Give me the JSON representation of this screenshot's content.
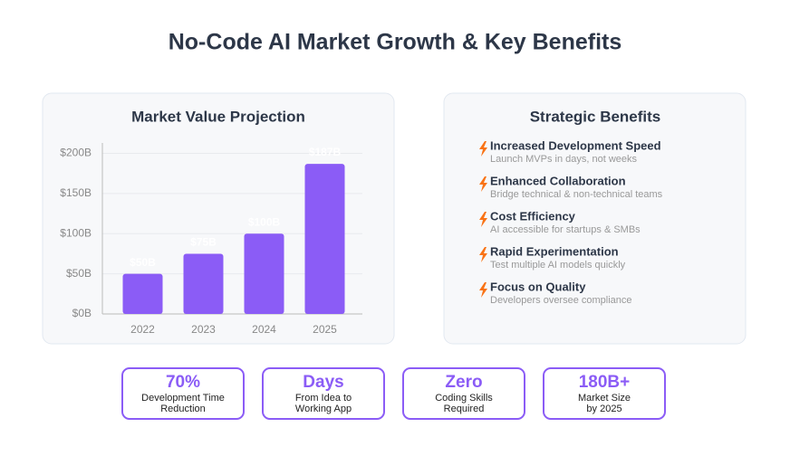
{
  "title": "No-Code AI Market Growth & Key Benefits",
  "chart_data": {
    "type": "bar",
    "title": "Market Value Projection",
    "categories": [
      "2022",
      "2023",
      "2024",
      "2025"
    ],
    "values": [
      50,
      75,
      100,
      187
    ],
    "value_labels": [
      "$50B",
      "$75B",
      "$100B",
      "$187B"
    ],
    "color": "#8b5cf6",
    "ylim": [
      0,
      213
    ],
    "yticks": [
      {
        "value": 0,
        "label": "$0B"
      },
      {
        "value": 50,
        "label": "$50B"
      },
      {
        "value": 100,
        "label": "$100B"
      },
      {
        "value": 150,
        "label": "$150B"
      },
      {
        "value": 200,
        "label": "$200B"
      }
    ],
    "grid": true
  },
  "benefits": {
    "title": "Strategic Benefits",
    "items": [
      {
        "heading": "Increased Development Speed",
        "detail": "Launch MVPs in days, not weeks"
      },
      {
        "heading": "Enhanced Collaboration",
        "detail": "Bridge technical & non-technical teams"
      },
      {
        "heading": "Cost Efficiency",
        "detail": "AI accessible for startups & SMBs"
      },
      {
        "heading": "Rapid Experimentation",
        "detail": "Test multiple AI models quickly"
      },
      {
        "heading": "Focus on Quality",
        "detail": "Developers oversee compliance"
      }
    ]
  },
  "stats": [
    {
      "value": "70%",
      "lines": [
        "Development Time",
        "Reduction"
      ]
    },
    {
      "value": "Days",
      "lines": [
        "From Idea to",
        "Working App"
      ]
    },
    {
      "value": "Zero",
      "lines": [
        "Coding Skills",
        "Required"
      ]
    },
    {
      "value": "180B+",
      "lines": [
        "Market Size",
        "by 2025"
      ]
    }
  ]
}
